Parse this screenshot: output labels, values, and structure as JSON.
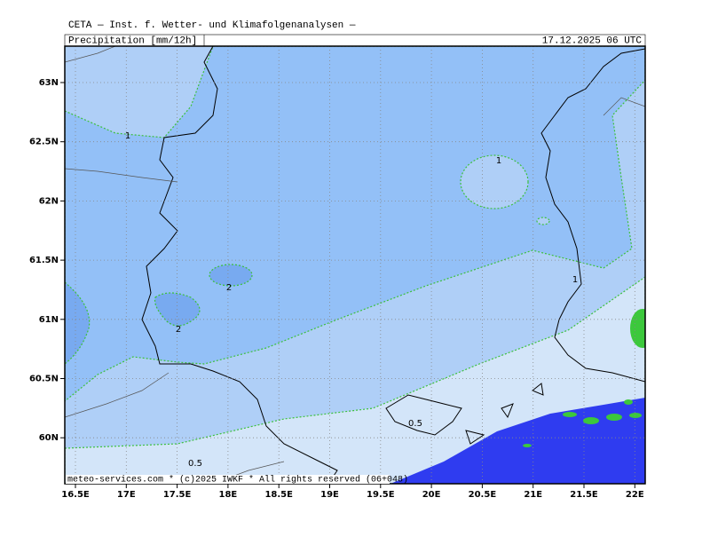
{
  "header": {
    "title": "CETA — Inst. f. Wetter- und Klimafolgenanalysen —",
    "product": "Precipitation [mm/12h]",
    "valid_time": "17.12.2025 06 UTC"
  },
  "map": {
    "lat_labels": [
      "63N",
      "62.5N",
      "62N",
      "61.5N",
      "61N",
      "60.5N",
      "60N"
    ],
    "lon_labels": [
      "16.5E",
      "17E",
      "17.5E",
      "18E",
      "18.5E",
      "19E",
      "19.5E",
      "20E",
      "20.5E",
      "21E",
      "21.5E",
      "22E"
    ],
    "contour_labels": [
      "1",
      "1",
      "1",
      "2",
      "2",
      "0.5",
      "0.5"
    ],
    "footer": "meteo-services.com * (c)2025 IWKF * All rights reserved (06+048)"
  }
}
